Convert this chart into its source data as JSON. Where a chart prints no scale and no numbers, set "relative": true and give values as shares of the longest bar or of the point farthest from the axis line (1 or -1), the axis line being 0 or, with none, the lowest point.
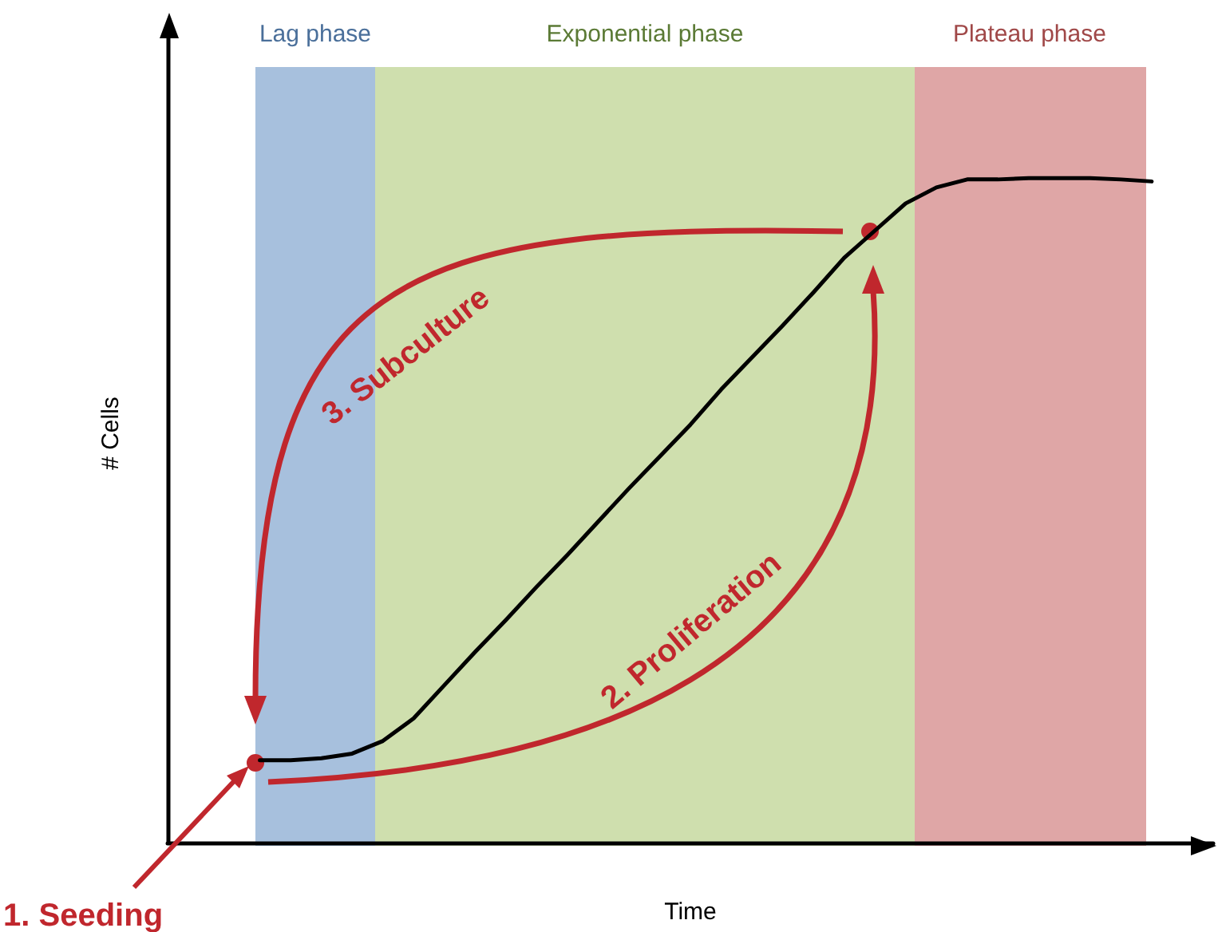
{
  "chart_data": {
    "type": "line",
    "relative": true,
    "xlabel": "Time",
    "ylabel": "# Cells",
    "marker": "none",
    "line_style": "solid",
    "categories": [
      null,
      null,
      null,
      null,
      null,
      null,
      null,
      null,
      null,
      null,
      null,
      null,
      null,
      null,
      null,
      null,
      null,
      null,
      null,
      null,
      null,
      null,
      null,
      null,
      null,
      null,
      null,
      null,
      null,
      null,
      null,
      null,
      null,
      null,
      null
    ],
    "series": [
      {
        "color": "#000000",
        "values": [
          null,
          null,
          null,
          0.124,
          0.124,
          0.127,
          0.134,
          0.153,
          0.187,
          0.237,
          0.287,
          0.335,
          0.385,
          0.433,
          0.483,
          0.533,
          0.581,
          0.629,
          0.682,
          0.73,
          0.778,
          0.828,
          0.88,
          0.921,
          0.962,
          0.986,
          0.998,
          0.998,
          1.0,
          1.0,
          1.0,
          0.998,
          0.995,
          null,
          null
        ]
      }
    ],
    "annotations": [
      "Lag phase",
      "Exponential phase",
      "Plateau phase",
      "1. Seeding",
      "2. Proliferation",
      "3. Subculture"
    ]
  }
}
